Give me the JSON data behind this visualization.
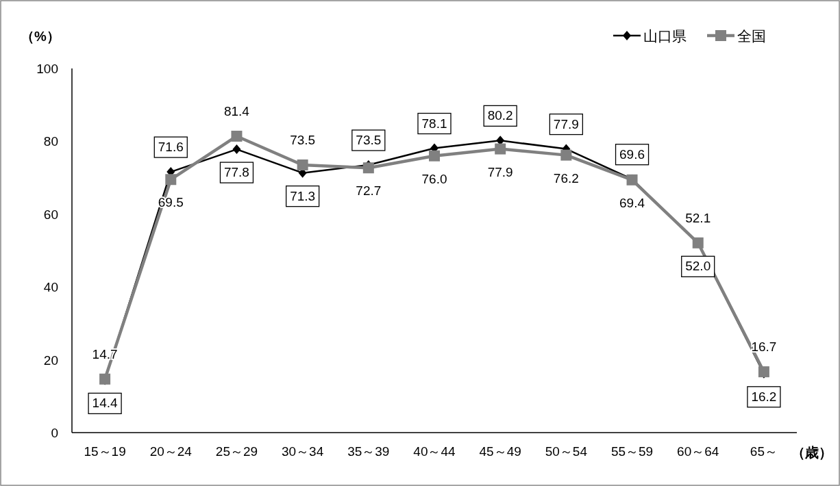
{
  "chart_data": {
    "type": "line",
    "ylabel": "（%）",
    "xlabel": "（歳）",
    "categories": [
      "15～19",
      "20～24",
      "25～29",
      "30～34",
      "35～39",
      "40～44",
      "45～49",
      "50～54",
      "55～59",
      "60～64",
      "65～"
    ],
    "series": [
      {
        "name": "山口県",
        "color": "#000000",
        "marker": "diamond",
        "values": [
          14.4,
          71.6,
          77.8,
          71.3,
          73.5,
          78.1,
          80.2,
          77.9,
          69.6,
          52.0,
          16.2
        ],
        "value_labels": [
          "14.4",
          "71.6",
          "77.8",
          "71.3",
          "73.5",
          "78.1",
          "80.2",
          "77.9",
          "69.6",
          "52.0",
          "16.2"
        ]
      },
      {
        "name": "全国",
        "color": "#808080",
        "marker": "square",
        "values": [
          14.7,
          69.5,
          81.4,
          73.5,
          72.7,
          76.0,
          77.9,
          76.2,
          69.4,
          52.1,
          16.7
        ],
        "value_labels": [
          "14.7",
          "69.5",
          "81.4",
          "73.5",
          "72.7",
          "76.0",
          "77.9",
          "76.2",
          "69.4",
          "52.1",
          "16.7"
        ]
      }
    ],
    "ylim": [
      0,
      100
    ],
    "yticks": [
      0,
      20,
      40,
      60,
      80,
      100
    ],
    "legend": "top right",
    "grid": false
  }
}
